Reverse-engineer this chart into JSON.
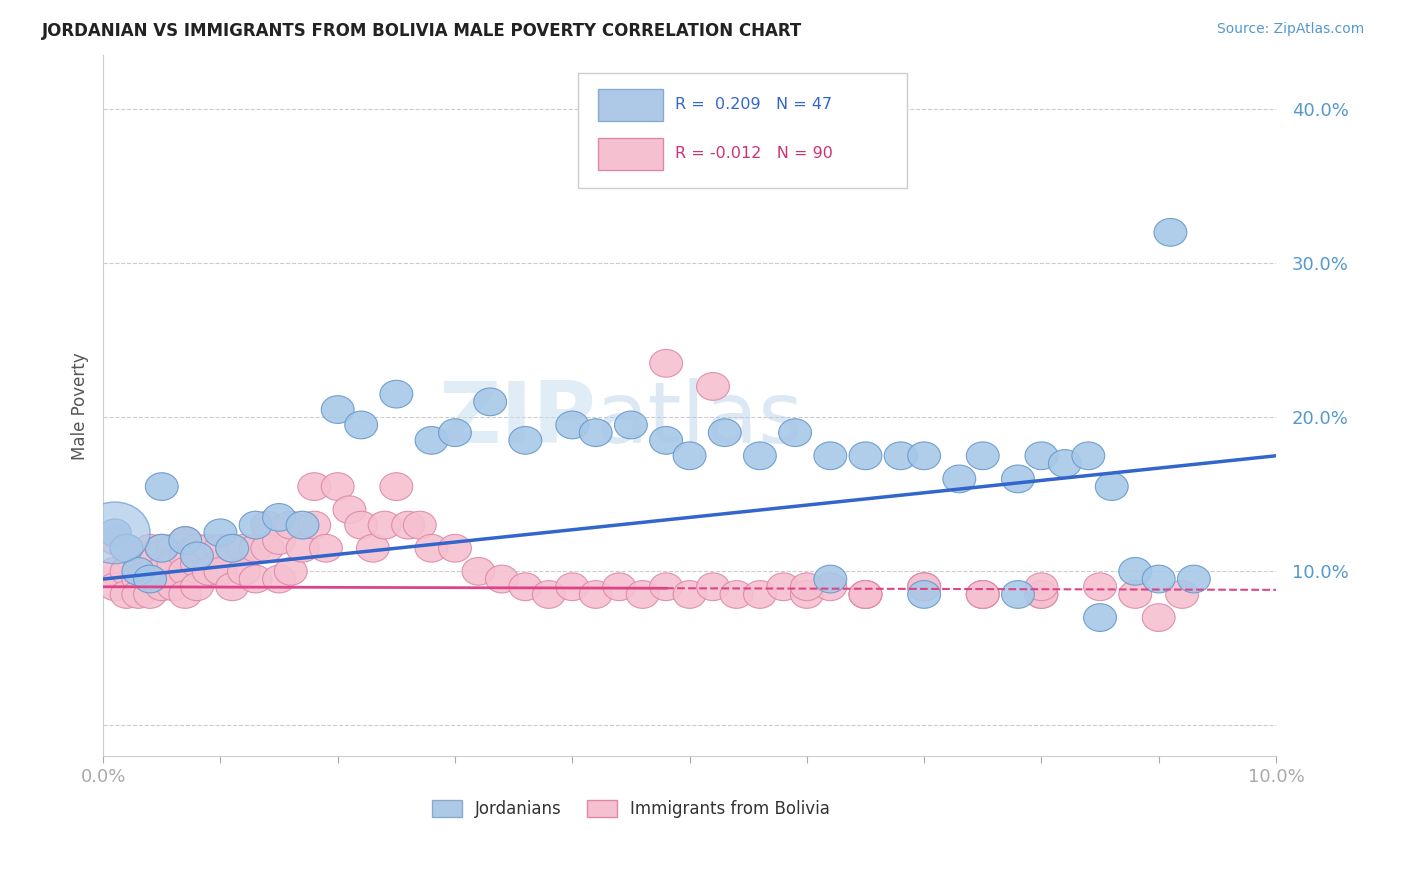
{
  "title": "JORDANIAN VS IMMIGRANTS FROM BOLIVIA MALE POVERTY CORRELATION CHART",
  "source": "Source: ZipAtlas.com",
  "ylabel": "Male Poverty",
  "yticks": [
    0.0,
    0.1,
    0.2,
    0.3,
    0.4
  ],
  "ytick_labels": [
    "",
    "10.0%",
    "20.0%",
    "30.0%",
    "40.0%"
  ],
  "xlim": [
    0.0,
    0.1
  ],
  "ylim": [
    -0.02,
    0.435
  ],
  "group1_color": "#a8c8e8",
  "group1_edge": "#6699cc",
  "group2_color": "#f5c0d0",
  "group2_edge": "#dd88aa",
  "trend1_color": "#3366cc",
  "trend2_color": "#dd4488",
  "watermark": "ZIPatlas",
  "trend1_x0": 0.0,
  "trend1_y0": 0.095,
  "trend1_x1": 0.1,
  "trend1_y1": 0.175,
  "trend2_x0": 0.0,
  "trend2_y0": 0.09,
  "trend2_x1": 0.1,
  "trend2_y1": 0.088,
  "trend2_solid_end": 0.048,
  "jordanians_x": [
    0.001,
    0.002,
    0.003,
    0.004,
    0.005,
    0.005,
    0.007,
    0.008,
    0.01,
    0.011,
    0.013,
    0.015,
    0.017,
    0.02,
    0.022,
    0.025,
    0.028,
    0.03,
    0.033,
    0.036,
    0.04,
    0.042,
    0.045,
    0.048,
    0.05,
    0.053,
    0.056,
    0.059,
    0.062,
    0.065,
    0.068,
    0.07,
    0.073,
    0.075,
    0.078,
    0.08,
    0.082,
    0.084,
    0.086,
    0.088,
    0.09,
    0.062,
    0.07,
    0.078,
    0.085,
    0.091,
    0.093
  ],
  "jordanians_y": [
    0.125,
    0.115,
    0.1,
    0.095,
    0.115,
    0.155,
    0.12,
    0.11,
    0.125,
    0.115,
    0.13,
    0.135,
    0.13,
    0.205,
    0.195,
    0.215,
    0.185,
    0.19,
    0.21,
    0.185,
    0.195,
    0.19,
    0.195,
    0.185,
    0.175,
    0.19,
    0.175,
    0.19,
    0.175,
    0.175,
    0.175,
    0.175,
    0.16,
    0.175,
    0.16,
    0.175,
    0.17,
    0.175,
    0.155,
    0.1,
    0.095,
    0.095,
    0.085,
    0.085,
    0.07,
    0.32,
    0.095
  ],
  "bolivia_x": [
    0.001,
    0.001,
    0.001,
    0.002,
    0.002,
    0.002,
    0.003,
    0.003,
    0.003,
    0.004,
    0.004,
    0.004,
    0.004,
    0.005,
    0.005,
    0.005,
    0.006,
    0.006,
    0.006,
    0.007,
    0.007,
    0.007,
    0.007,
    0.008,
    0.008,
    0.008,
    0.009,
    0.009,
    0.01,
    0.01,
    0.011,
    0.011,
    0.012,
    0.012,
    0.013,
    0.013,
    0.014,
    0.014,
    0.015,
    0.015,
    0.016,
    0.016,
    0.017,
    0.018,
    0.018,
    0.019,
    0.02,
    0.021,
    0.022,
    0.023,
    0.024,
    0.025,
    0.026,
    0.027,
    0.028,
    0.03,
    0.032,
    0.034,
    0.036,
    0.038,
    0.04,
    0.042,
    0.044,
    0.046,
    0.048,
    0.05,
    0.052,
    0.054,
    0.056,
    0.058,
    0.06,
    0.065,
    0.07,
    0.075,
    0.08,
    0.048,
    0.052,
    0.062,
    0.065,
    0.07,
    0.075,
    0.08,
    0.085,
    0.088,
    0.06,
    0.065,
    0.07,
    0.075,
    0.08,
    0.09,
    0.092
  ],
  "bolivia_y": [
    0.12,
    0.1,
    0.09,
    0.115,
    0.1,
    0.085,
    0.11,
    0.095,
    0.085,
    0.115,
    0.105,
    0.095,
    0.085,
    0.115,
    0.1,
    0.09,
    0.115,
    0.105,
    0.09,
    0.12,
    0.11,
    0.1,
    0.085,
    0.115,
    0.105,
    0.09,
    0.115,
    0.1,
    0.115,
    0.1,
    0.115,
    0.09,
    0.115,
    0.1,
    0.115,
    0.095,
    0.13,
    0.115,
    0.12,
    0.095,
    0.13,
    0.1,
    0.115,
    0.155,
    0.13,
    0.115,
    0.155,
    0.14,
    0.13,
    0.115,
    0.13,
    0.155,
    0.13,
    0.13,
    0.115,
    0.115,
    0.1,
    0.095,
    0.09,
    0.085,
    0.09,
    0.085,
    0.09,
    0.085,
    0.09,
    0.085,
    0.09,
    0.085,
    0.085,
    0.09,
    0.085,
    0.085,
    0.09,
    0.085,
    0.085,
    0.235,
    0.22,
    0.09,
    0.085,
    0.09,
    0.085,
    0.085,
    0.09,
    0.085,
    0.09,
    0.085,
    0.09,
    0.085,
    0.09,
    0.07,
    0.085
  ]
}
